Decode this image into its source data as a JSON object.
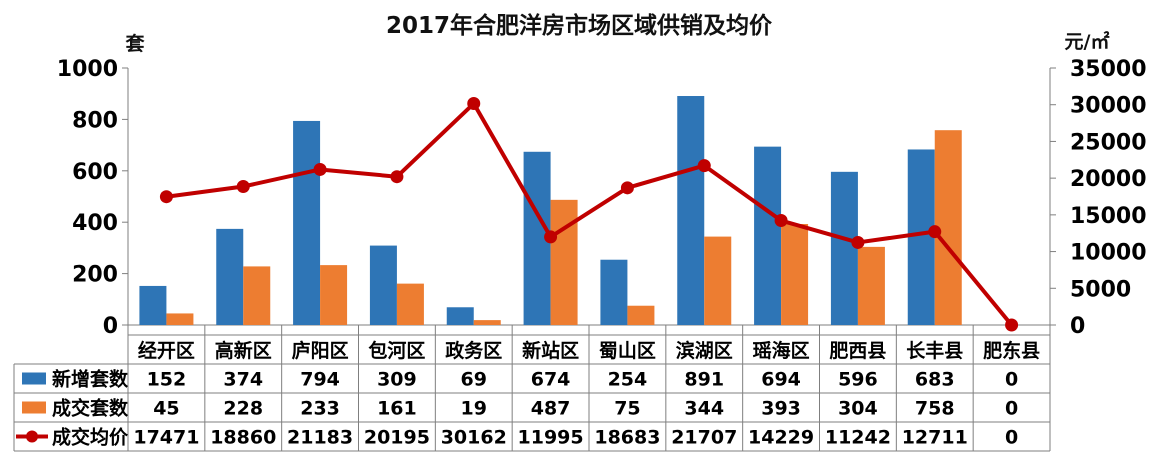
{
  "chart_data": {
    "type": "bar",
    "title": "2017年合肥洋房市场区域供销及均价",
    "ylabel_left": "套",
    "ylabel_right": "元/㎡",
    "ylim_left": [
      0,
      1000
    ],
    "ylim_right": [
      0,
      35000
    ],
    "yticks_left": [
      0,
      200,
      400,
      600,
      800,
      1000
    ],
    "yticks_right": [
      0,
      5000,
      10000,
      15000,
      20000,
      25000,
      30000,
      35000
    ],
    "grid": false,
    "legend_position": "bottom-data-table",
    "categories": [
      "经开区",
      "高新区",
      "庐阳区",
      "包河区",
      "政务区",
      "新站区",
      "蜀山区",
      "滨湖区",
      "瑶海区",
      "肥西县",
      "长丰县",
      "肥东县"
    ],
    "series": [
      {
        "name": "新增套数",
        "type": "bar",
        "axis": "left",
        "color": "#2E75B6",
        "values": [
          152,
          374,
          794,
          309,
          69,
          674,
          254,
          891,
          694,
          596,
          683,
          0
        ]
      },
      {
        "name": "成交套数",
        "type": "bar",
        "axis": "left",
        "color": "#ED7D31",
        "values": [
          45,
          228,
          233,
          161,
          19,
          487,
          75,
          344,
          393,
          304,
          758,
          0
        ]
      },
      {
        "name": "成交均价",
        "type": "line",
        "axis": "right",
        "color": "#C00000",
        "values": [
          17471,
          18860,
          21183,
          20195,
          30162,
          11995,
          18683,
          21707,
          14229,
          11242,
          12711,
          0
        ]
      }
    ]
  }
}
